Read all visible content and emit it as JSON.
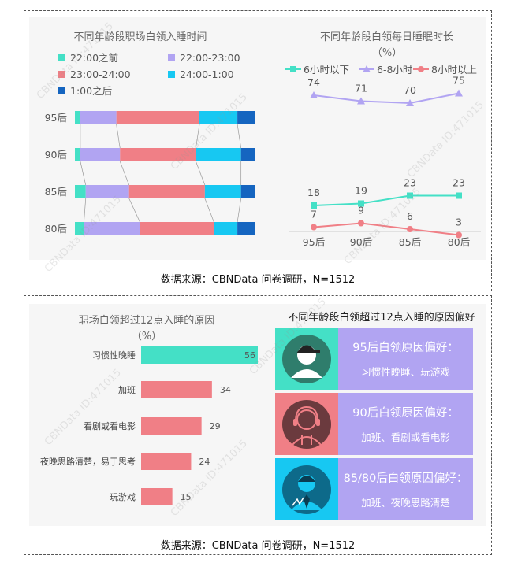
{
  "panel1": {
    "left_title": "不同年龄段职场白领入睡时间",
    "right_title_line1": "不同年龄段白领每日睡眠时长",
    "right_title_line2": "（%）",
    "source": "数据来源：CBNData 问卷调研，N=1512"
  },
  "panel2": {
    "left_title_line1": "职场白领超过12点入睡的原因",
    "left_title_line2": "（%）",
    "right_title": "不同年龄段白领超过12点入睡的原因偏好",
    "source": "数据来源：CBNData 问卷调研，N=1512",
    "cards": [
      {
        "title": "95后白领原因偏好：",
        "detail": "习惯性晚睡、玩游戏",
        "icon": "person-cap-icon",
        "color": "#2f7d6c"
      },
      {
        "title": "90后白领原因偏好：",
        "detail": "加班、看剧或看电影",
        "icon": "person-headphones-icon",
        "color": "#f07f86"
      },
      {
        "title": "85/80后白领原因偏好：",
        "detail": "加班、夜晚思路清楚",
        "icon": "person-tie-icon",
        "color": "#1bb6ec"
      }
    ]
  },
  "watermark": "CBNData ID:471015",
  "chart_data": [
    {
      "type": "bar",
      "stacked": true,
      "orientation": "horizontal",
      "title": "不同年龄段职场白领入睡时间",
      "categories": [
        "95后",
        "90后",
        "85后",
        "80后"
      ],
      "series": [
        {
          "name": "22:00之前",
          "color": "#44e0c6",
          "values": [
            3,
            3,
            6,
            5
          ]
        },
        {
          "name": "22:00-23:00",
          "color": "#b1a4f2",
          "values": [
            20,
            22,
            24,
            31
          ]
        },
        {
          "name": "23:00-24:00",
          "color": "#f07f86",
          "values": [
            46,
            42,
            42,
            41
          ]
        },
        {
          "name": "24:00-1:00",
          "color": "#17c8f2",
          "values": [
            21,
            25,
            20,
            13
          ]
        },
        {
          "name": "1:00之后",
          "color": "#1565c0",
          "values": [
            10,
            8,
            8,
            10
          ]
        }
      ],
      "legend": "top"
    },
    {
      "type": "line",
      "title": "不同年龄段白领每日睡眠时长（%）",
      "categories": [
        "95后",
        "90后",
        "85后",
        "80后"
      ],
      "series": [
        {
          "name": "6小时以下",
          "color": "#44e0c6",
          "marker": "square",
          "values": [
            18,
            19,
            23,
            23
          ]
        },
        {
          "name": "6-8小时",
          "color": "#b1a4f2",
          "marker": "triangle",
          "values": [
            74,
            71,
            70,
            75
          ]
        },
        {
          "name": "8小时以上",
          "color": "#f07f86",
          "marker": "circle",
          "values": [
            7,
            9,
            6,
            3
          ]
        }
      ],
      "legend": "top"
    },
    {
      "type": "bar",
      "orientation": "horizontal",
      "title": "职场白领超过12点入睡的原因（%）",
      "categories": [
        "习惯性晚睡",
        "加班",
        "看剧或看电影",
        "夜晚思路清楚，易于思考",
        "玩游戏"
      ],
      "values": [
        56,
        34,
        29,
        24,
        15
      ],
      "colors": [
        "#44e0c6",
        "#f07f86",
        "#f07f86",
        "#f07f86",
        "#f07f86"
      ]
    }
  ]
}
